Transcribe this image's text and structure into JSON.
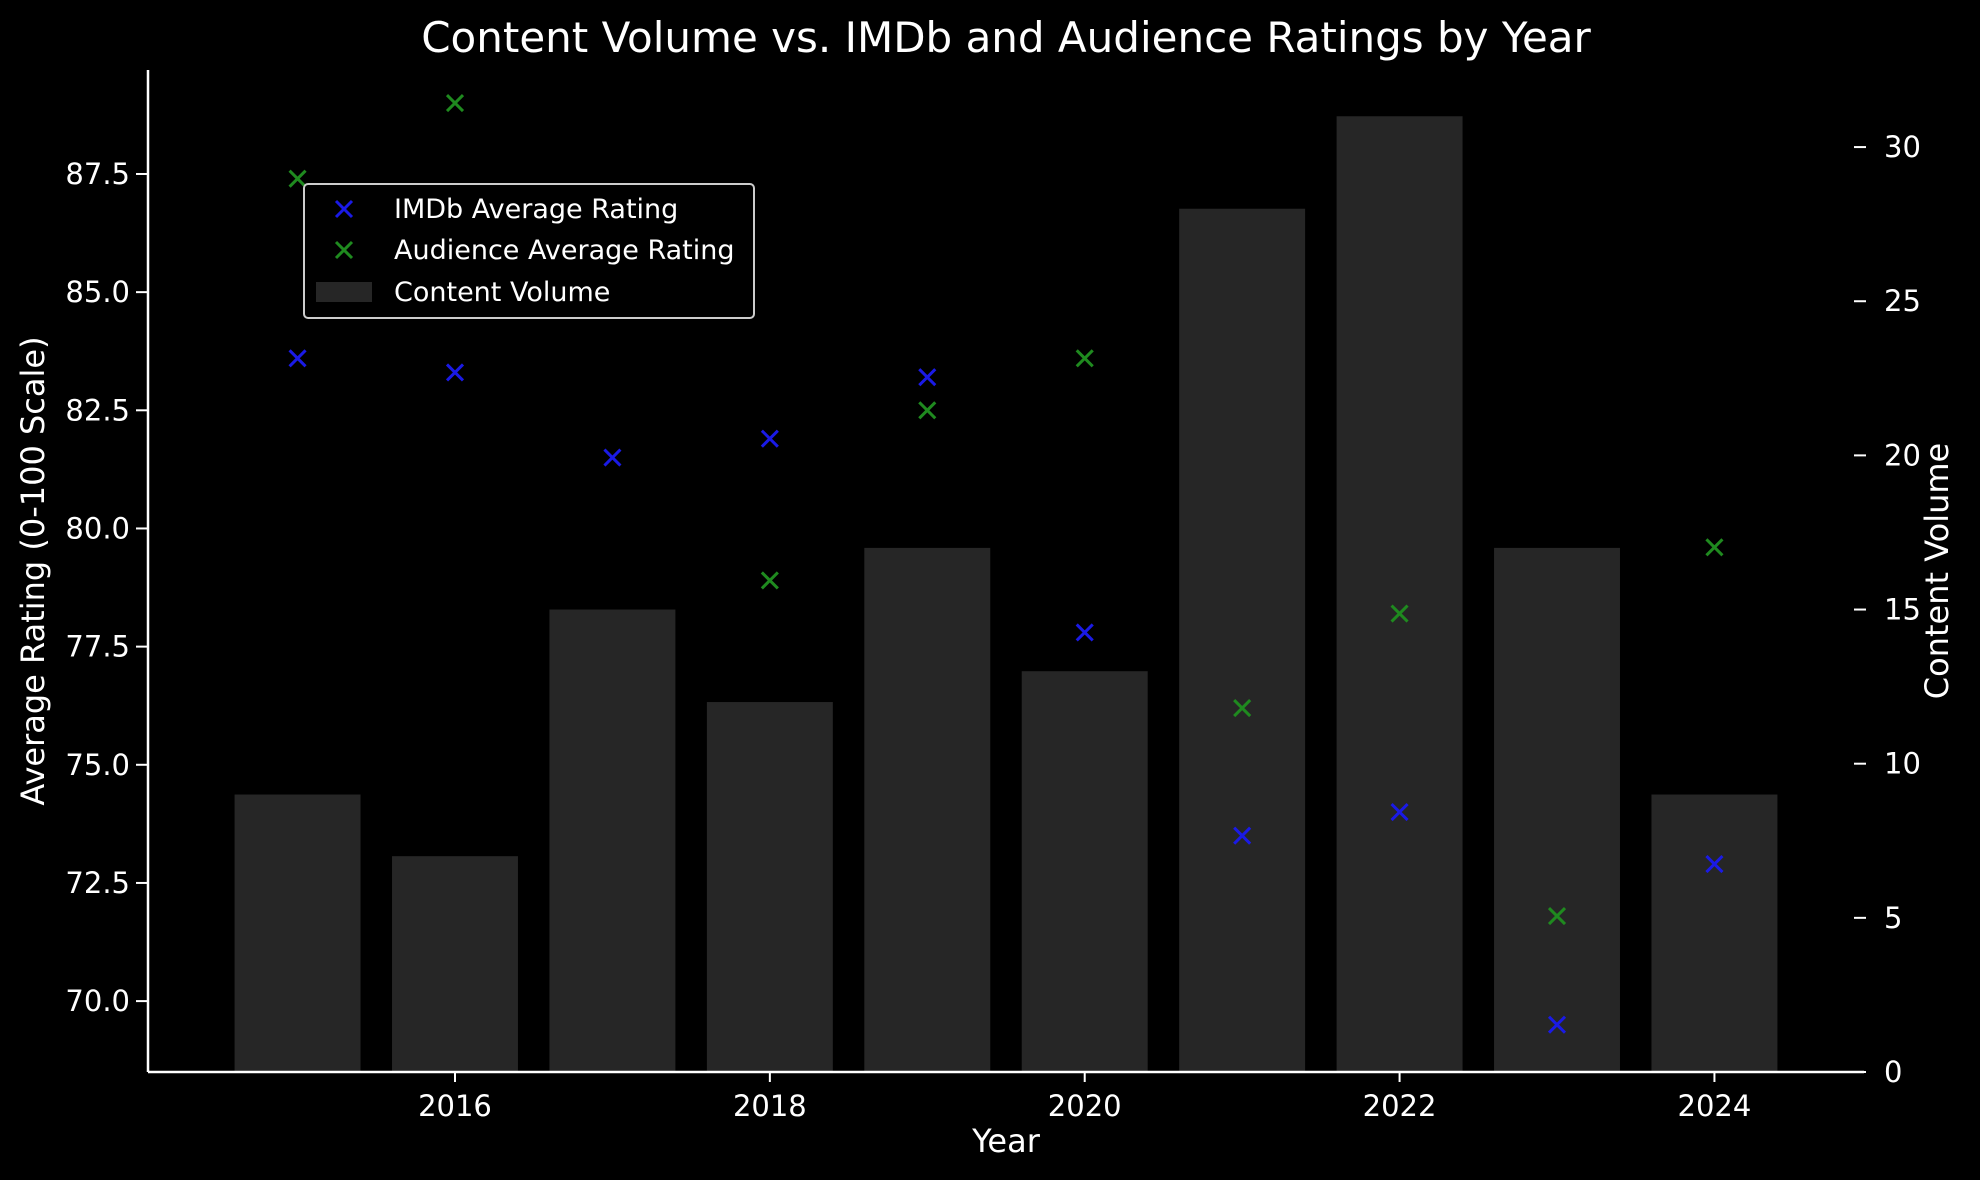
{
  "chart_data": {
    "type": "bar",
    "title": "Content Volume vs. IMDb and Audience Ratings by Year",
    "xlabel": "Year",
    "ylabel": "Average Rating (0-100 Scale)",
    "y2label": "Content Volume",
    "x": [
      2015,
      2016,
      2017,
      2018,
      2019,
      2020,
      2021,
      2022,
      2023,
      2024
    ],
    "xticks": [
      2016,
      2018,
      2020,
      2022,
      2024
    ],
    "xlim": [
      2014.05,
      2024.95
    ],
    "ylim": [
      68.5,
      89.7
    ],
    "yticks": [
      70.0,
      72.5,
      75.0,
      77.5,
      80.0,
      82.5,
      85.0,
      87.5
    ],
    "y2lim": [
      0,
      32.5
    ],
    "y2ticks": [
      0,
      5,
      10,
      15,
      20,
      25,
      30
    ],
    "grid": false,
    "legend_position": "upper-left",
    "series": [
      {
        "name": "IMDb Average Rating",
        "kind": "scatter",
        "marker": "x",
        "color": "#1a1ae6",
        "values": [
          83.6,
          83.3,
          81.5,
          81.9,
          83.2,
          77.8,
          73.5,
          74.0,
          69.5,
          72.9
        ]
      },
      {
        "name": "Audience Average Rating",
        "kind": "scatter",
        "marker": "x",
        "color": "#1f8a1f",
        "values": [
          87.4,
          89.0,
          null,
          78.9,
          82.5,
          83.6,
          76.2,
          78.2,
          71.8,
          79.6
        ]
      },
      {
        "name": "Content Volume",
        "kind": "bar",
        "axis": "right",
        "color": "#262626",
        "values": [
          9,
          7,
          15,
          12,
          17,
          13,
          28,
          31,
          17,
          9
        ]
      }
    ]
  }
}
